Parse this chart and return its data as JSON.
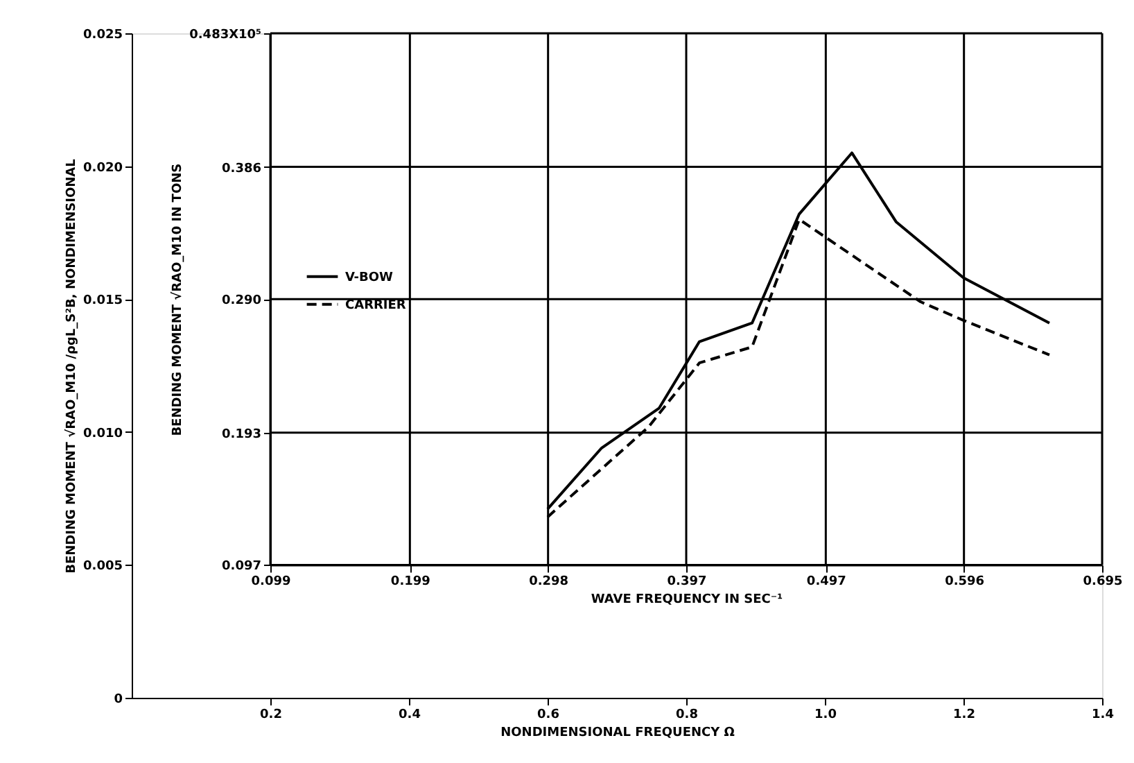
{
  "chart_data": {
    "type": "line",
    "xlabel": "NONDIMENSIONAL FREQUENCY Ω",
    "ylabel": "BENDING MOMENT √RAO_M10 /ρgL_S²B, NONDIMENSIONAL",
    "x2label": "WAVE FREQUENCY IN SEC⁻¹",
    "y2label": "BENDING MOMENT √RAO_M10 IN TONS",
    "xlim": [
      0,
      1.4
    ],
    "xticks": [
      0.2,
      0.4,
      0.6,
      0.8,
      {
        "value": 1,
        "label": "1.0"
      },
      1.2,
      1.4
    ],
    "ylim": [
      0,
      0.025
    ],
    "yticks": [
      0,
      0.005,
      {
        "value": 0.01,
        "label": "0.010"
      },
      0.015,
      {
        "value": 0.02,
        "label": "0.020"
      },
      0.025
    ],
    "x2lim": [
      0.099,
      0.695
    ],
    "x2ticks": [
      0.099,
      0.199,
      0.298,
      0.397,
      0.497,
      0.596,
      0.695
    ],
    "y2lim": [
      0.097,
      0.483
    ],
    "y2ticks": [
      0.097,
      0.193,
      {
        "value": 0.29,
        "label": "0.290"
      },
      0.386,
      {
        "value": 0.483,
        "label": "0.483X10⁵"
      }
    ],
    "grid": true,
    "legend": "left",
    "marker": "none",
    "series": [
      {
        "name": "V-BOW",
        "color": "#000000",
        "line_style": "solid",
        "x": [
          0.6,
          0.678,
          0.761,
          0.819,
          0.895,
          0.963,
          1.039,
          1.103,
          1.2,
          1.324
        ],
        "values": [
          0.0071,
          0.0094,
          0.0109,
          0.0134,
          0.0141,
          0.0182,
          0.0205,
          0.0179,
          0.0158,
          0.0141
        ]
      },
      {
        "name": "CARRIER",
        "color": "#000000",
        "line_style": "dashed",
        "x": [
          0.6,
          0.746,
          0.819,
          0.895,
          0.963,
          1.138,
          1.2,
          1.324
        ],
        "values": [
          0.0068,
          0.0102,
          0.0126,
          0.0132,
          0.018,
          0.0149,
          0.0142,
          0.0129
        ]
      }
    ]
  }
}
